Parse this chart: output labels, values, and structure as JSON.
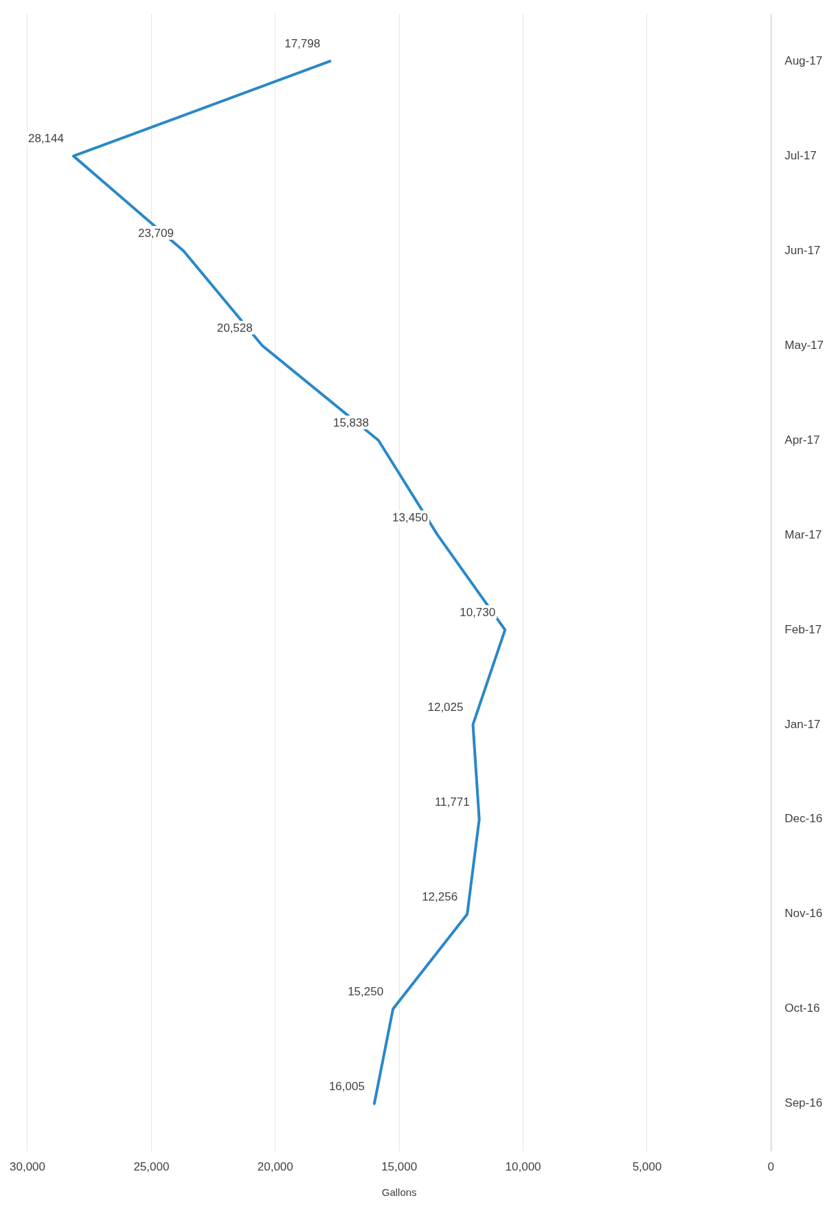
{
  "chart_data": {
    "type": "line",
    "orientation": "horizontal",
    "xlabel": "Gallons",
    "categories": [
      "Aug-17",
      "Jul-17",
      "Jun-17",
      "May-17",
      "Apr-17",
      "Mar-17",
      "Feb-17",
      "Jan-17",
      "Dec-16",
      "Nov-16",
      "Oct-16",
      "Sep-16"
    ],
    "series": [
      {
        "color": "#2a88c8",
        "values": [
          17798,
          28144,
          23709,
          20528,
          15838,
          13450,
          10730,
          12025,
          11771,
          12256,
          15250,
          16005
        ],
        "value_labels": [
          "17,798",
          "28,144",
          "23,709",
          "20,528",
          "15,838",
          "13,450",
          "10,730",
          "12,025",
          "11,771",
          "12,256",
          "15,250",
          "16,005"
        ]
      }
    ],
    "xlim": [
      30000,
      0
    ],
    "xticks": [
      {
        "value": 30000,
        "label": "30,000"
      },
      {
        "value": 25000,
        "label": "25,000"
      },
      {
        "value": 20000,
        "label": "20,000"
      },
      {
        "value": 15000,
        "label": "15,000"
      },
      {
        "value": 10000,
        "label": "10,000"
      },
      {
        "value": 5000,
        "label": "5,000"
      },
      0
    ],
    "grid": "x",
    "marker": "none",
    "line_style": "solid"
  }
}
